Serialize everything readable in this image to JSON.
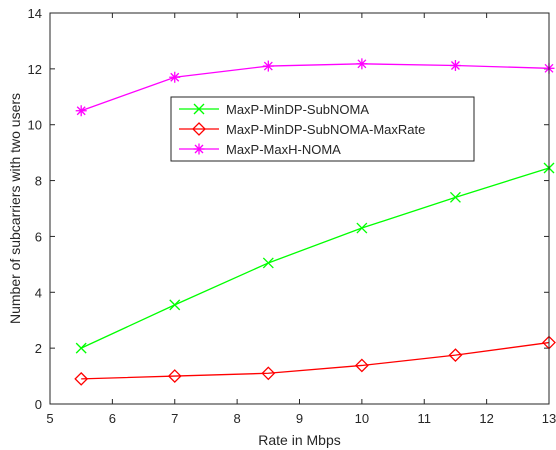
{
  "chart_data": {
    "type": "line",
    "xlabel": "Rate in Mbps",
    "ylabel": "Number of subcarriers with two users",
    "xlim": [
      5,
      13
    ],
    "ylim": [
      0,
      14
    ],
    "xticks": [
      5,
      6,
      7,
      8,
      9,
      10,
      11,
      12,
      13
    ],
    "yticks": [
      0,
      2,
      4,
      6,
      8,
      10,
      12,
      14
    ],
    "grid": false,
    "legend_position": "upper-middle",
    "x": [
      5.5,
      7,
      8.5,
      10,
      11.5,
      13
    ],
    "series": [
      {
        "name": "MaxP-MinDP-SubNOMA",
        "values": [
          2.0,
          3.55,
          5.05,
          6.3,
          7.4,
          8.45
        ],
        "color": "#00ff00",
        "marker": "x"
      },
      {
        "name": "MaxP-MinDP-SubNOMA-MaxRate",
        "values": [
          0.9,
          1.0,
          1.1,
          1.38,
          1.75,
          2.2
        ],
        "color": "#ff0000",
        "marker": "diamond"
      },
      {
        "name": "MaxP-MaxH-NOMA",
        "values": [
          10.5,
          11.7,
          12.1,
          12.18,
          12.12,
          12.02
        ],
        "color": "#ff00ff",
        "marker": "asterisk"
      }
    ]
  }
}
